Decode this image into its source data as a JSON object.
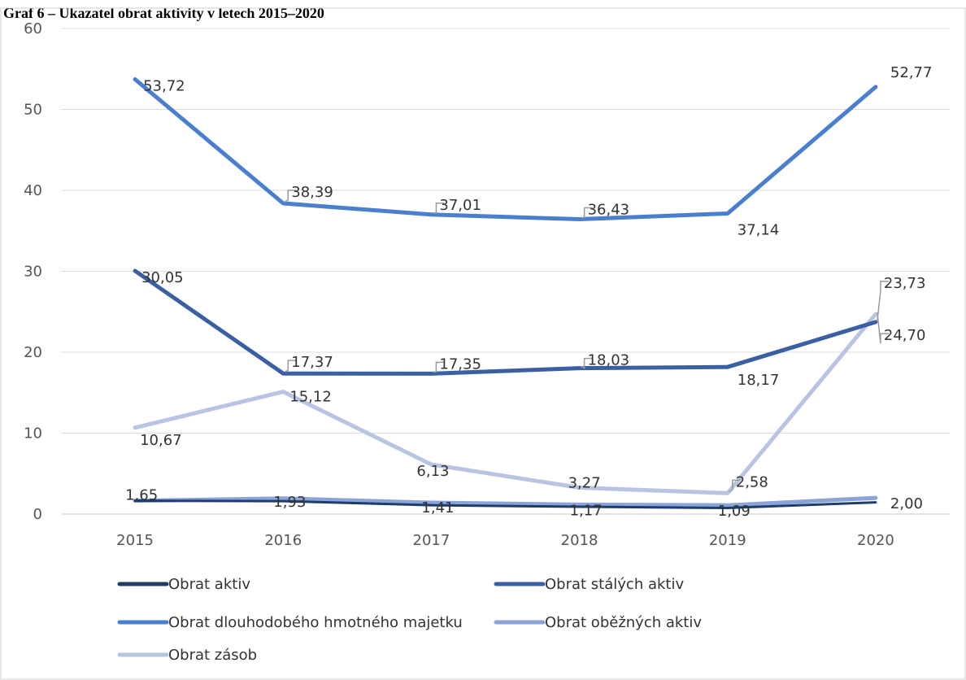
{
  "caption": "Graf 6 – Ukazatel obrat aktivity v letech 2015–2020",
  "chart_data": {
    "type": "line",
    "title": "",
    "xlabel": "",
    "ylabel": "",
    "categories": [
      "2015",
      "2016",
      "2017",
      "2018",
      "2019",
      "2020"
    ],
    "ylim": [
      0,
      60
    ],
    "yticks": [
      "0",
      "10",
      "20",
      "30",
      "40",
      "50",
      "60"
    ],
    "grid": true,
    "legend_position": "bottom",
    "series": [
      {
        "name": "Obrat aktiv",
        "color": "#1f3d6b",
        "values": [
          1.65,
          1.6,
          1.1,
          0.9,
          0.75,
          1.45
        ],
        "labels": [
          "1,65",
          "",
          "",
          "",
          "",
          ""
        ]
      },
      {
        "name": "Obrat stálých aktiv",
        "color": "#3a5fa3",
        "values": [
          30.05,
          17.37,
          17.35,
          18.03,
          18.17,
          23.73
        ],
        "labels": [
          "30,05",
          "17,37",
          "17,35",
          "18,03",
          "18,17",
          "23,73"
        ]
      },
      {
        "name": "Obrat dlouhodobého hmotného majetku",
        "color": "#4a7fd0",
        "values": [
          53.72,
          38.39,
          37.01,
          36.43,
          37.14,
          52.77
        ],
        "labels": [
          "53,72",
          "38,39",
          "37,01",
          "36,43",
          "37,14",
          "52,77"
        ]
      },
      {
        "name": "Obrat oběžných aktiv",
        "color": "#8aa3d8",
        "values": [
          1.65,
          1.93,
          1.41,
          1.17,
          1.09,
          2.0
        ],
        "labels": [
          "",
          "1,93",
          "1,41",
          "1,17",
          "1,09",
          "2,00"
        ]
      },
      {
        "name": "Obrat zásob",
        "color": "#b9c4e3",
        "values": [
          10.67,
          15.12,
          6.13,
          3.27,
          2.58,
          24.7
        ],
        "labels": [
          "10,67",
          "15,12",
          "6,13",
          "3,27",
          "2,58",
          "24,70"
        ]
      }
    ]
  }
}
